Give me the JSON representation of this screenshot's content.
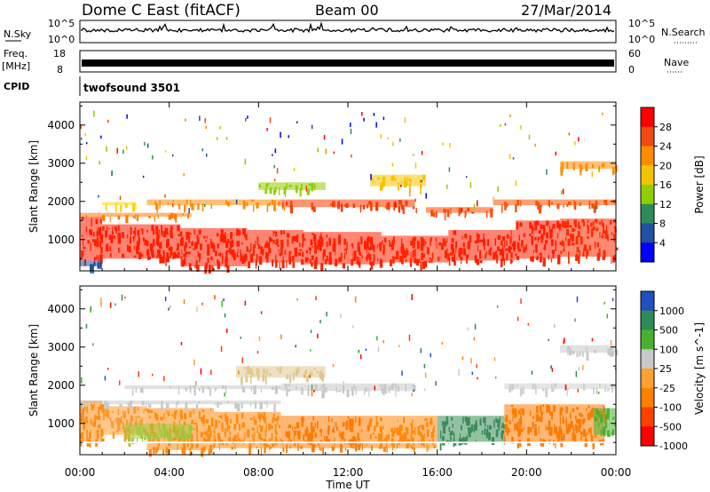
{
  "header": {
    "radar": "Dome C East (fitACF)",
    "beam": "Beam 00",
    "date": "27/Mar/2014"
  },
  "strip": {
    "nsky_label": "N.Sky",
    "nsky_hi": "10^5",
    "nsky_lo": "10^0",
    "nsky_right_hi": "10^5",
    "nsky_right_lo": "10^0",
    "nsearch_label": "N.Search",
    "freq_label": "Freq.",
    "freq_unit": "[MHz]",
    "freq_hi": "18",
    "freq_lo": "8",
    "nave_hi": "60",
    "nave_lo": "0",
    "nave_label": "Nave",
    "cpid_label": "CPID",
    "cpid_value": "twofsound 3501"
  },
  "chart_data": [
    {
      "type": "heatmap",
      "title": "",
      "xlabel": "Time UT",
      "ylabel": "Slant Range [km]",
      "xticks": [
        "00:00",
        "04:00",
        "08:00",
        "12:00",
        "16:00",
        "20:00",
        "00:00"
      ],
      "xlim_hours": [
        0,
        24
      ],
      "yticks": [
        1000,
        2000,
        3000,
        4000
      ],
      "ylim": [
        180,
        4600
      ],
      "colorbar": {
        "label": "Power [dB]",
        "ticks": [
          "28",
          "24",
          "20",
          "16",
          "12",
          "8",
          "4"
        ],
        "colors": [
          "#ff0000",
          "#f04a10",
          "#ff8c00",
          "#f5c400",
          "#8fce00",
          "#2e8b57",
          "#2050a0",
          "#0000ff"
        ]
      },
      "bands": [
        {
          "t0": 0.0,
          "t1": 1.0,
          "r0": 450,
          "r1": 1600,
          "color": "#ff1e00"
        },
        {
          "t0": 1.0,
          "t1": 4.5,
          "r0": 500,
          "r1": 1400,
          "color": "#ff1e00"
        },
        {
          "t0": 4.5,
          "t1": 7.5,
          "r0": 300,
          "r1": 1300,
          "color": "#ff1e00"
        },
        {
          "t0": 7.5,
          "t1": 10.0,
          "r0": 400,
          "r1": 1250,
          "color": "#ff2000"
        },
        {
          "t0": 10.0,
          "t1": 13.5,
          "r0": 350,
          "r1": 1200,
          "color": "#ff2000"
        },
        {
          "t0": 13.5,
          "t1": 16.5,
          "r0": 400,
          "r1": 1100,
          "color": "#ff2400"
        },
        {
          "t0": 16.5,
          "t1": 19.5,
          "r0": 450,
          "r1": 1250,
          "color": "#ff1e00"
        },
        {
          "t0": 19.5,
          "t1": 21.5,
          "r0": 500,
          "r1": 1500,
          "color": "#ff1e00"
        },
        {
          "t0": 21.5,
          "t1": 24.0,
          "r0": 550,
          "r1": 1550,
          "color": "#ff2a00"
        },
        {
          "t0": 0.0,
          "t1": 5.0,
          "r0": 1600,
          "r1": 1700,
          "color": "#ff7a00"
        },
        {
          "t0": 3.0,
          "t1": 9.0,
          "r0": 1900,
          "r1": 2050,
          "color": "#ff8c00"
        },
        {
          "t0": 1.0,
          "t1": 2.5,
          "r0": 1900,
          "r1": 1980,
          "color": "#ffd000"
        },
        {
          "t0": 9.0,
          "t1": 15.0,
          "r0": 1850,
          "r1": 2050,
          "color": "#ff3a00"
        },
        {
          "t0": 15.5,
          "t1": 18.5,
          "r0": 1700,
          "r1": 1850,
          "color": "#ff4a00"
        },
        {
          "t0": 18.5,
          "t1": 24.0,
          "r0": 1900,
          "r1": 2050,
          "color": "#ff5000"
        },
        {
          "t0": 8.0,
          "t1": 11.0,
          "r0": 2300,
          "r1": 2500,
          "color": "#8fce00"
        },
        {
          "t0": 13.0,
          "t1": 15.5,
          "r0": 2400,
          "r1": 2700,
          "color": "#f5c400"
        },
        {
          "t0": 21.5,
          "t1": 24.0,
          "r0": 2850,
          "r1": 3050,
          "color": "#ff8c00"
        },
        {
          "t0": 0.0,
          "t1": 1.0,
          "r0": 300,
          "r1": 450,
          "color": "#2050a0"
        }
      ]
    },
    {
      "type": "heatmap",
      "title": "",
      "xlabel": "Time UT",
      "ylabel": "Slant Range [km]",
      "xticks": [
        "00:00",
        "04:00",
        "08:00",
        "12:00",
        "16:00",
        "20:00",
        "00:00"
      ],
      "xlim_hours": [
        0,
        24
      ],
      "yticks": [
        1000,
        2000,
        3000,
        4000
      ],
      "ylim": [
        180,
        4600
      ],
      "colorbar": {
        "label": "Velocity [m s^-1]",
        "ticks": [
          "1000",
          "500",
          "100",
          "25",
          "-25",
          "-100",
          "-500",
          "-1000"
        ],
        "colors": [
          "#2050c0",
          "#2e8b57",
          "#48b030",
          "#c8c8c8",
          "#ffa030",
          "#ff8000",
          "#ff4000",
          "#ff0000"
        ]
      },
      "bands": [
        {
          "t0": 0.0,
          "t1": 1.0,
          "r0": 500,
          "r1": 1600,
          "color": "#ff8a10"
        },
        {
          "t0": 1.0,
          "t1": 3.0,
          "r0": 700,
          "r1": 1450,
          "color": "#ff9a30"
        },
        {
          "t0": 3.0,
          "t1": 6.0,
          "r0": 300,
          "r1": 1400,
          "color": "#ff8a10"
        },
        {
          "t0": 2.0,
          "t1": 5.0,
          "r0": 600,
          "r1": 1000,
          "color": "#a0c840"
        },
        {
          "t0": 6.0,
          "t1": 9.0,
          "r0": 350,
          "r1": 1300,
          "color": "#ff8a10"
        },
        {
          "t0": 9.0,
          "t1": 13.0,
          "r0": 350,
          "r1": 1200,
          "color": "#ff7a00"
        },
        {
          "t0": 13.0,
          "t1": 16.0,
          "r0": 350,
          "r1": 1200,
          "color": "#ff8a10"
        },
        {
          "t0": 16.0,
          "t1": 19.0,
          "r0": 500,
          "r1": 1200,
          "color": "#3c8c5a"
        },
        {
          "t0": 19.0,
          "t1": 23.5,
          "r0": 500,
          "r1": 1500,
          "color": "#ff7a00"
        },
        {
          "t0": 23.0,
          "t1": 24.0,
          "r0": 700,
          "r1": 1400,
          "color": "#48b030"
        },
        {
          "t0": 0.0,
          "t1": 9.0,
          "r0": 1500,
          "r1": 1600,
          "color": "#c8c8c8"
        },
        {
          "t0": 2.0,
          "t1": 9.0,
          "r0": 1900,
          "r1": 2000,
          "color": "#c8c8c8"
        },
        {
          "t0": 9.0,
          "t1": 15.0,
          "r0": 1850,
          "r1": 2050,
          "color": "#c8c8c8"
        },
        {
          "t0": 19.0,
          "t1": 24.0,
          "r0": 1900,
          "r1": 2050,
          "color": "#d0d0d0"
        },
        {
          "t0": 7.0,
          "t1": 11.0,
          "r0": 2200,
          "r1": 2500,
          "color": "#e0c890"
        },
        {
          "t0": 21.5,
          "t1": 24.0,
          "r0": 2850,
          "r1": 3050,
          "color": "#c8c8c8"
        },
        {
          "t0": 0.0,
          "t1": 24.0,
          "r0": 480,
          "r1": 520,
          "color": "#ffffff"
        }
      ]
    }
  ]
}
